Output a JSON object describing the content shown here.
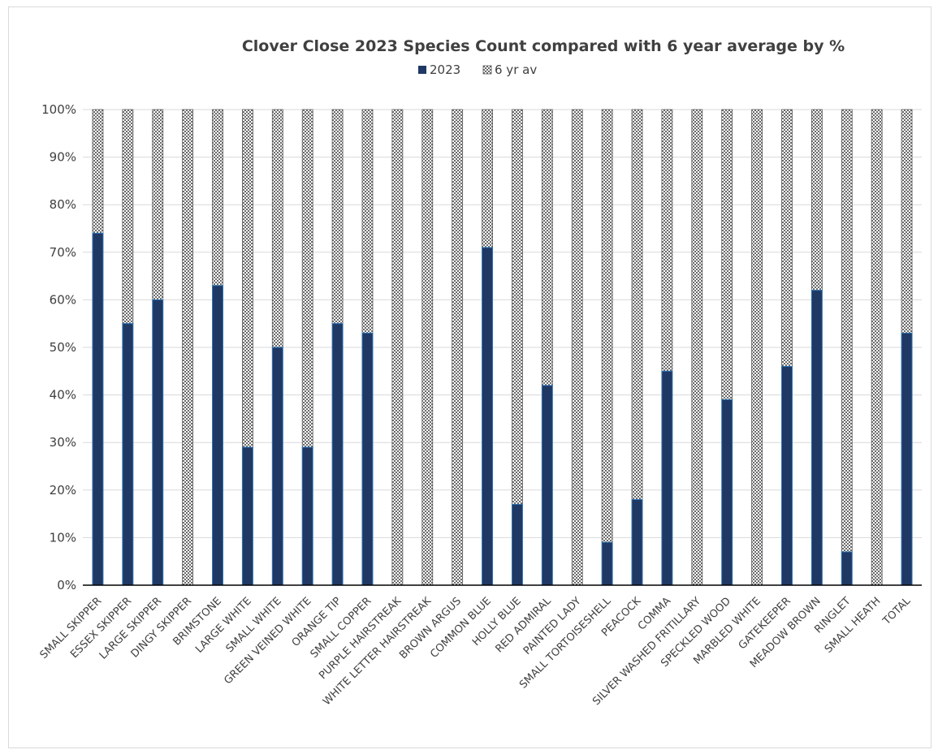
{
  "chart_data": {
    "type": "bar",
    "stacked": "percent",
    "title": "Clover Close 2023 Species Count  compared with 6 year average by %",
    "xlabel": "",
    "ylabel": "",
    "ylim": [
      0,
      100
    ],
    "y_ticks": [
      "0%",
      "10%",
      "20%",
      "30%",
      "40%",
      "50%",
      "60%",
      "70%",
      "80%",
      "90%",
      "100%"
    ],
    "grid": true,
    "legend_position": "top",
    "categories": [
      "SMALL SKIPPER",
      "ESSEX SKIPPER",
      "LARGE SKIPPER",
      "DINGY SKIPPER",
      "BRIMSTONE",
      "LARGE WHITE",
      "SMALL WHITE",
      "GREEN VEINED WHITE",
      "ORANGE TIP",
      "SMALL COPPER",
      "PURPLE HAIRSTREAK",
      "WHITE LETTER HAIRSTREAK",
      "BROWN ARGUS",
      "COMMON BLUE",
      "HOLLY BLUE",
      "RED ADMIRAL",
      "PAINTED LADY",
      "SMALL TORTOISESHELL",
      "PEACOCK",
      "COMMA",
      "SILVER WASHED FRITILLARY",
      "SPECKLED WOOD",
      "MARBLED WHITE",
      "GATEKEEPER",
      "MEADOW BROWN",
      "RINGLET",
      "SMALL  HEATH",
      "TOTAL"
    ],
    "series": [
      {
        "name": "2023",
        "color": "#1f3864",
        "pattern": "solid",
        "values": [
          74,
          55,
          60,
          0,
          63,
          29,
          50,
          29,
          55,
          53,
          0,
          0,
          0,
          71,
          17,
          42,
          0,
          9,
          18,
          45,
          0,
          39,
          0,
          46,
          62,
          7,
          0,
          53
        ]
      },
      {
        "name": "6 yr av",
        "color": "#595959",
        "pattern": "checker",
        "values": [
          26,
          45,
          40,
          100,
          37,
          71,
          50,
          71,
          45,
          47,
          100,
          100,
          100,
          29,
          83,
          58,
          100,
          91,
          82,
          55,
          100,
          61,
          100,
          54,
          38,
          93,
          100,
          47
        ]
      }
    ]
  }
}
